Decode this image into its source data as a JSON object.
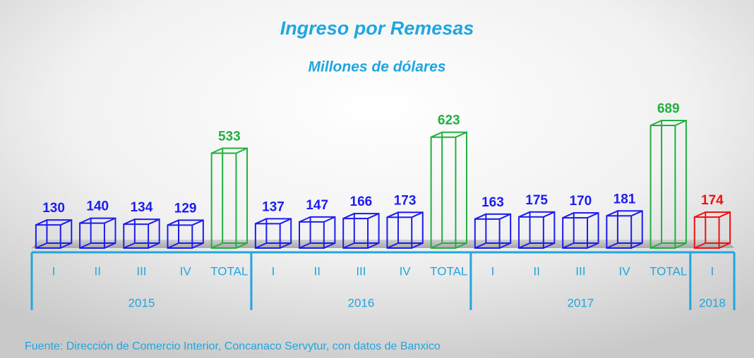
{
  "chart_data": {
    "type": "bar",
    "title": "Ingreso por Remesas",
    "subtitle": "Millones de dólares",
    "source": "Fuente: Dirección de Comercio Interior, Concanaco Servytur, con datos de Banxico",
    "groups": [
      {
        "name": "2015",
        "categories": [
          "I",
          "II",
          "III",
          "IV",
          "TOTAL"
        ],
        "values": [
          130,
          140,
          134,
          129,
          533
        ],
        "colors": [
          "#1c1cf0",
          "#1c1cf0",
          "#1c1cf0",
          "#1c1cf0",
          "#20b040"
        ]
      },
      {
        "name": "2016",
        "categories": [
          "I",
          "II",
          "III",
          "IV",
          "TOTAL"
        ],
        "values": [
          137,
          147,
          166,
          173,
          623
        ],
        "colors": [
          "#1c1cf0",
          "#1c1cf0",
          "#1c1cf0",
          "#1c1cf0",
          "#20b040"
        ]
      },
      {
        "name": "2017",
        "categories": [
          "I",
          "II",
          "III",
          "IV",
          "TOTAL"
        ],
        "values": [
          163,
          175,
          170,
          181,
          689
        ],
        "colors": [
          "#1c1cf0",
          "#1c1cf0",
          "#1c1cf0",
          "#1c1cf0",
          "#20b040"
        ]
      },
      {
        "name": "2018",
        "categories": [
          "I"
        ],
        "values": [
          174
        ],
        "colors": [
          "#ee1111"
        ]
      }
    ]
  }
}
